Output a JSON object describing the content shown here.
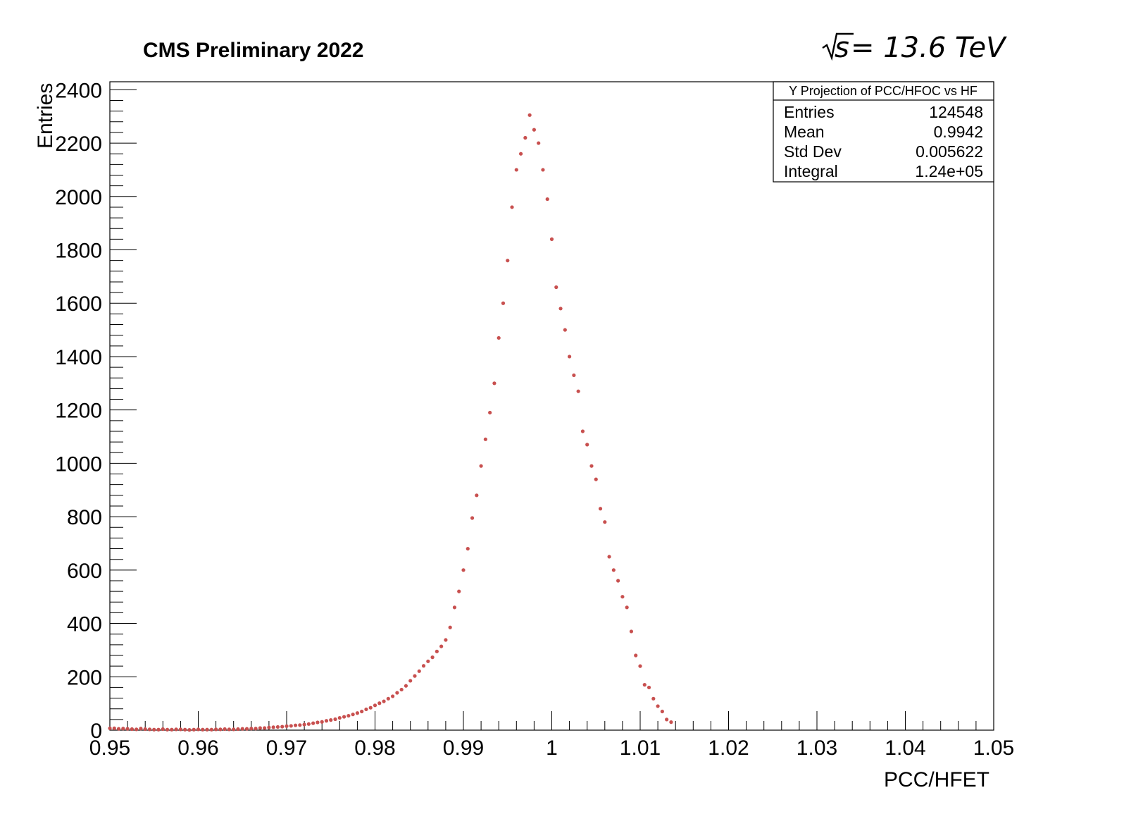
{
  "header": {
    "left_label": "CMS Preliminary 2022",
    "energy_prefix": "s",
    "energy_label": " = 13.6 TeV"
  },
  "stats_box": {
    "title": "Y Projection of PCC/HFOC vs HF",
    "rows": [
      {
        "key": "Entries",
        "value": "124548"
      },
      {
        "key": "Mean",
        "value": "0.9942"
      },
      {
        "key": "Std Dev",
        "value": "0.005622"
      },
      {
        "key": "Integral",
        "value": "1.24e+05"
      }
    ]
  },
  "chart_data": {
    "type": "scatter",
    "title": "",
    "xlabel": "PCC/HFET",
    "ylabel": "Entries",
    "xlim": [
      0.95,
      1.05
    ],
    "ylim": [
      0,
      2430
    ],
    "x_ticks": [
      "0.95",
      "0.96",
      "0.97",
      "0.98",
      "0.99",
      "1",
      "1.01",
      "1.02",
      "1.03",
      "1.04",
      "1.05"
    ],
    "y_ticks": [
      "0",
      "200",
      "400",
      "600",
      "800",
      "1000",
      "1200",
      "1400",
      "1600",
      "1800",
      "2000",
      "2200",
      "2400"
    ],
    "marker_color": "#c8504f",
    "grid": false,
    "legend": "none",
    "series": [
      {
        "values_xy": [
          [
            0.95,
            7
          ],
          [
            0.9505,
            7
          ],
          [
            0.951,
            5
          ],
          [
            0.9515,
            6
          ],
          [
            0.952,
            5
          ],
          [
            0.9525,
            4
          ],
          [
            0.953,
            3
          ],
          [
            0.9535,
            6
          ],
          [
            0.954,
            4
          ],
          [
            0.9545,
            3
          ],
          [
            0.955,
            2
          ],
          [
            0.9555,
            2
          ],
          [
            0.956,
            4
          ],
          [
            0.9565,
            2
          ],
          [
            0.957,
            2
          ],
          [
            0.9575,
            3
          ],
          [
            0.958,
            3
          ],
          [
            0.9585,
            2
          ],
          [
            0.959,
            1
          ],
          [
            0.9595,
            2
          ],
          [
            0.96,
            3
          ],
          [
            0.9605,
            2
          ],
          [
            0.961,
            2
          ],
          [
            0.9615,
            2
          ],
          [
            0.962,
            3
          ],
          [
            0.9625,
            3
          ],
          [
            0.963,
            4
          ],
          [
            0.9635,
            3
          ],
          [
            0.964,
            3
          ],
          [
            0.9645,
            4
          ],
          [
            0.965,
            5
          ],
          [
            0.9655,
            5
          ],
          [
            0.966,
            6
          ],
          [
            0.9665,
            6
          ],
          [
            0.967,
            8
          ],
          [
            0.9675,
            8
          ],
          [
            0.968,
            10
          ],
          [
            0.9685,
            11
          ],
          [
            0.969,
            12
          ],
          [
            0.9695,
            13
          ],
          [
            0.97,
            15
          ],
          [
            0.9705,
            16
          ],
          [
            0.971,
            18
          ],
          [
            0.9715,
            19
          ],
          [
            0.972,
            21
          ],
          [
            0.9725,
            23
          ],
          [
            0.973,
            26
          ],
          [
            0.9735,
            29
          ],
          [
            0.974,
            31
          ],
          [
            0.9745,
            35
          ],
          [
            0.975,
            38
          ],
          [
            0.9755,
            41
          ],
          [
            0.976,
            46
          ],
          [
            0.9765,
            50
          ],
          [
            0.977,
            54
          ],
          [
            0.9775,
            59
          ],
          [
            0.978,
            64
          ],
          [
            0.9785,
            70
          ],
          [
            0.979,
            78
          ],
          [
            0.9795,
            84
          ],
          [
            0.98,
            93
          ],
          [
            0.9805,
            101
          ],
          [
            0.981,
            108
          ],
          [
            0.9815,
            118
          ],
          [
            0.982,
            127
          ],
          [
            0.9825,
            140
          ],
          [
            0.983,
            152
          ],
          [
            0.9835,
            166
          ],
          [
            0.984,
            185
          ],
          [
            0.9845,
            203
          ],
          [
            0.985,
            221
          ],
          [
            0.9855,
            241
          ],
          [
            0.986,
            258
          ],
          [
            0.9865,
            273
          ],
          [
            0.987,
            295
          ],
          [
            0.9875,
            314
          ],
          [
            0.988,
            338
          ],
          [
            0.9885,
            385
          ],
          [
            0.989,
            460
          ],
          [
            0.9895,
            520
          ],
          [
            0.99,
            600
          ],
          [
            0.9905,
            680
          ],
          [
            0.991,
            795
          ],
          [
            0.9915,
            880
          ],
          [
            0.992,
            990
          ],
          [
            0.9925,
            1090
          ],
          [
            0.993,
            1190
          ],
          [
            0.9935,
            1300
          ],
          [
            0.994,
            1470
          ],
          [
            0.9945,
            1600
          ],
          [
            0.995,
            1760
          ],
          [
            0.9955,
            1960
          ],
          [
            0.996,
            2100
          ],
          [
            0.9965,
            2160
          ],
          [
            0.997,
            2220
          ],
          [
            0.9975,
            2305
          ],
          [
            0.998,
            2250
          ],
          [
            0.9985,
            2200
          ],
          [
            0.999,
            2100
          ],
          [
            0.9995,
            1990
          ],
          [
            1.0,
            1840
          ],
          [
            1.0005,
            1660
          ],
          [
            1.001,
            1580
          ],
          [
            1.0015,
            1500
          ],
          [
            1.002,
            1400
          ],
          [
            1.0025,
            1330
          ],
          [
            1.003,
            1270
          ],
          [
            1.0035,
            1120
          ],
          [
            1.004,
            1070
          ],
          [
            1.0045,
            990
          ],
          [
            1.005,
            940
          ],
          [
            1.0055,
            830
          ],
          [
            1.006,
            780
          ],
          [
            1.0065,
            650
          ],
          [
            1.007,
            600
          ],
          [
            1.0075,
            560
          ],
          [
            1.008,
            500
          ],
          [
            1.0085,
            460
          ],
          [
            1.009,
            370
          ],
          [
            1.0095,
            280
          ],
          [
            1.01,
            240
          ],
          [
            1.0105,
            170
          ],
          [
            1.011,
            160
          ],
          [
            1.0115,
            118
          ],
          [
            1.012,
            90
          ],
          [
            1.0125,
            70
          ],
          [
            1.013,
            40
          ],
          [
            1.0135,
            30
          ]
        ],
        "name": ""
      }
    ]
  }
}
